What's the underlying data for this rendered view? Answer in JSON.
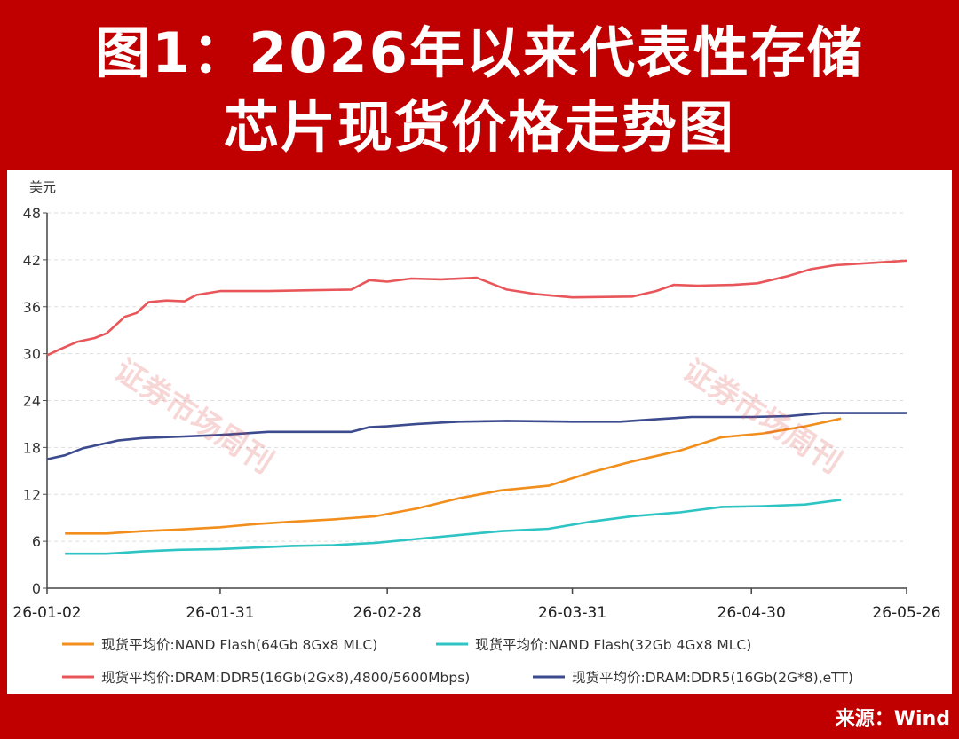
{
  "title_line1": "图1：2026年以来代表性存储",
  "title_line2": "芯片现货价格走势图",
  "source": "来源：Wind",
  "watermark": "证券市场周刊",
  "chart_data": {
    "type": "line",
    "ylabel": "美元",
    "ylim": [
      0,
      48
    ],
    "yticks": [
      "0",
      "6",
      "12",
      "18",
      "24",
      "30",
      "36",
      "42",
      "48"
    ],
    "xtick_labels": [
      "26-01-02",
      "26-01-31",
      "26-02-28",
      "26-03-31",
      "26-04-30",
      "26-05-26"
    ],
    "xlim": [
      "2026-01-02",
      "2026-05-26"
    ],
    "grid": true,
    "legend_position": "bottom",
    "series": [
      {
        "name": "现货平均价:NAND Flash(64Gb 8Gx8 MLC)",
        "color": "#f28e1c",
        "points": [
          [
            "2026-01-05",
            7.0
          ],
          [
            "2026-01-12",
            7.0
          ],
          [
            "2026-01-18",
            7.3
          ],
          [
            "2026-01-24",
            7.5
          ],
          [
            "2026-01-31",
            7.8
          ],
          [
            "2026-02-06",
            8.2
          ],
          [
            "2026-02-12",
            8.5
          ],
          [
            "2026-02-19",
            8.8
          ],
          [
            "2026-02-26",
            9.2
          ],
          [
            "2026-03-05",
            10.2
          ],
          [
            "2026-03-12",
            11.5
          ],
          [
            "2026-03-19",
            12.5
          ],
          [
            "2026-03-27",
            13.1
          ],
          [
            "2026-04-03",
            14.8
          ],
          [
            "2026-04-10",
            16.2
          ],
          [
            "2026-04-18",
            17.6
          ],
          [
            "2026-04-25",
            19.3
          ],
          [
            "2026-05-02",
            19.8
          ],
          [
            "2026-05-09",
            20.7
          ],
          [
            "2026-05-15",
            21.7
          ]
        ]
      },
      {
        "name": "现货平均价:NAND Flash(32Gb 4Gx8 MLC)",
        "color": "#2ec4c4",
        "points": [
          [
            "2026-01-05",
            4.4
          ],
          [
            "2026-01-12",
            4.4
          ],
          [
            "2026-01-18",
            4.7
          ],
          [
            "2026-01-24",
            4.9
          ],
          [
            "2026-01-31",
            5.0
          ],
          [
            "2026-02-06",
            5.2
          ],
          [
            "2026-02-12",
            5.4
          ],
          [
            "2026-02-19",
            5.5
          ],
          [
            "2026-02-26",
            5.8
          ],
          [
            "2026-03-05",
            6.3
          ],
          [
            "2026-03-12",
            6.8
          ],
          [
            "2026-03-19",
            7.3
          ],
          [
            "2026-03-27",
            7.6
          ],
          [
            "2026-04-03",
            8.5
          ],
          [
            "2026-04-10",
            9.2
          ],
          [
            "2026-04-18",
            9.7
          ],
          [
            "2026-04-25",
            10.4
          ],
          [
            "2026-05-02",
            10.5
          ],
          [
            "2026-05-09",
            10.7
          ],
          [
            "2026-05-15",
            11.3
          ]
        ]
      },
      {
        "name": "现货平均价:DRAM:DDR5(16Gb(2Gx8),4800/5600Mbps)",
        "color": "#e8565a",
        "points": [
          [
            "2026-01-02",
            29.8
          ],
          [
            "2026-01-04",
            30.5
          ],
          [
            "2026-01-07",
            31.5
          ],
          [
            "2026-01-10",
            32.0
          ],
          [
            "2026-01-12",
            32.6
          ],
          [
            "2026-01-15",
            34.7
          ],
          [
            "2026-01-17",
            35.2
          ],
          [
            "2026-01-19",
            36.6
          ],
          [
            "2026-01-22",
            36.8
          ],
          [
            "2026-01-25",
            36.7
          ],
          [
            "2026-01-27",
            37.5
          ],
          [
            "2026-01-31",
            38.0
          ],
          [
            "2026-02-08",
            38.0
          ],
          [
            "2026-02-15",
            38.1
          ],
          [
            "2026-02-22",
            38.2
          ],
          [
            "2026-02-25",
            39.4
          ],
          [
            "2026-02-28",
            39.2
          ],
          [
            "2026-03-04",
            39.6
          ],
          [
            "2026-03-09",
            39.5
          ],
          [
            "2026-03-15",
            39.7
          ],
          [
            "2026-03-20",
            38.2
          ],
          [
            "2026-03-25",
            37.6
          ],
          [
            "2026-03-31",
            37.2
          ],
          [
            "2026-04-10",
            37.3
          ],
          [
            "2026-04-14",
            38.0
          ],
          [
            "2026-04-17",
            38.8
          ],
          [
            "2026-04-21",
            38.7
          ],
          [
            "2026-04-27",
            38.8
          ],
          [
            "2026-05-01",
            39.0
          ],
          [
            "2026-05-06",
            39.9
          ],
          [
            "2026-05-10",
            40.8
          ],
          [
            "2026-05-14",
            41.3
          ],
          [
            "2026-05-20",
            41.6
          ],
          [
            "2026-05-26",
            41.9
          ]
        ]
      },
      {
        "name": "现货平均价:DRAM:DDR5(16Gb(2G*8),eTT)",
        "color": "#3c4a8e",
        "points": [
          [
            "2026-01-02",
            16.5
          ],
          [
            "2026-01-05",
            17.0
          ],
          [
            "2026-01-08",
            17.9
          ],
          [
            "2026-01-11",
            18.4
          ],
          [
            "2026-01-14",
            18.9
          ],
          [
            "2026-01-18",
            19.2
          ],
          [
            "2026-01-25",
            19.4
          ],
          [
            "2026-01-31",
            19.6
          ],
          [
            "2026-02-08",
            20.0
          ],
          [
            "2026-02-15",
            20.0
          ],
          [
            "2026-02-22",
            20.0
          ],
          [
            "2026-02-25",
            20.6
          ],
          [
            "2026-02-28",
            20.7
          ],
          [
            "2026-03-05",
            21.0
          ],
          [
            "2026-03-12",
            21.3
          ],
          [
            "2026-03-20",
            21.4
          ],
          [
            "2026-03-31",
            21.3
          ],
          [
            "2026-04-08",
            21.3
          ],
          [
            "2026-04-14",
            21.6
          ],
          [
            "2026-04-20",
            21.9
          ],
          [
            "2026-04-30",
            21.9
          ],
          [
            "2026-05-06",
            22.0
          ],
          [
            "2026-05-12",
            22.4
          ],
          [
            "2026-05-26",
            22.4
          ]
        ]
      }
    ]
  }
}
